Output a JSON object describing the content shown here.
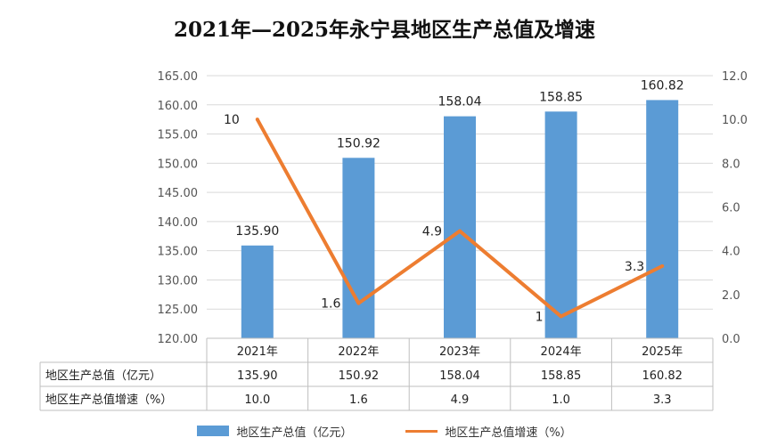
{
  "title": "2021年—2025年永宁县地区生产总值及增速",
  "chart_data": {
    "type": "bar",
    "categories": [
      "2021年",
      "2022年",
      "2023年",
      "2024年",
      "2025年"
    ],
    "series": [
      {
        "name": "地区生产总值（亿元）",
        "type": "bar",
        "axis": "left",
        "values": [
          135.9,
          150.92,
          158.04,
          158.85,
          160.82
        ],
        "labels": [
          "135.90",
          "150.92",
          "158.04",
          "158.85",
          "160.82"
        ],
        "color": "#5b9bd5"
      },
      {
        "name": "地区生产总值增速（%）",
        "type": "line",
        "axis": "right",
        "values": [
          10.0,
          1.6,
          4.9,
          1.0,
          3.3
        ],
        "labels": [
          "10",
          "1.6",
          "4.9",
          "1",
          "3.3"
        ],
        "color": "#ed7d31"
      }
    ],
    "y_left": {
      "range": [
        120,
        165
      ],
      "ticks": [
        "120.00",
        "125.00",
        "130.00",
        "135.00",
        "140.00",
        "145.00",
        "150.00",
        "155.00",
        "160.00",
        "165.00"
      ]
    },
    "y_right": {
      "range": [
        0,
        12
      ],
      "ticks": [
        "0.0",
        "2.0",
        "4.0",
        "6.0",
        "8.0",
        "10.0",
        "12.0"
      ]
    },
    "table": {
      "rows": [
        {
          "label": "地区生产总值（亿元）",
          "values": [
            "135.90",
            "150.92",
            "158.04",
            "158.85",
            "160.82"
          ]
        },
        {
          "label": "地区生产总值增速（%）",
          "values": [
            "10.0",
            "1.6",
            "4.9",
            "1.0",
            "3.3"
          ]
        }
      ]
    },
    "legend": {
      "position": "bottom",
      "items": [
        "地区生产总值（亿元）",
        "地区生产总值增速（%）"
      ]
    }
  }
}
